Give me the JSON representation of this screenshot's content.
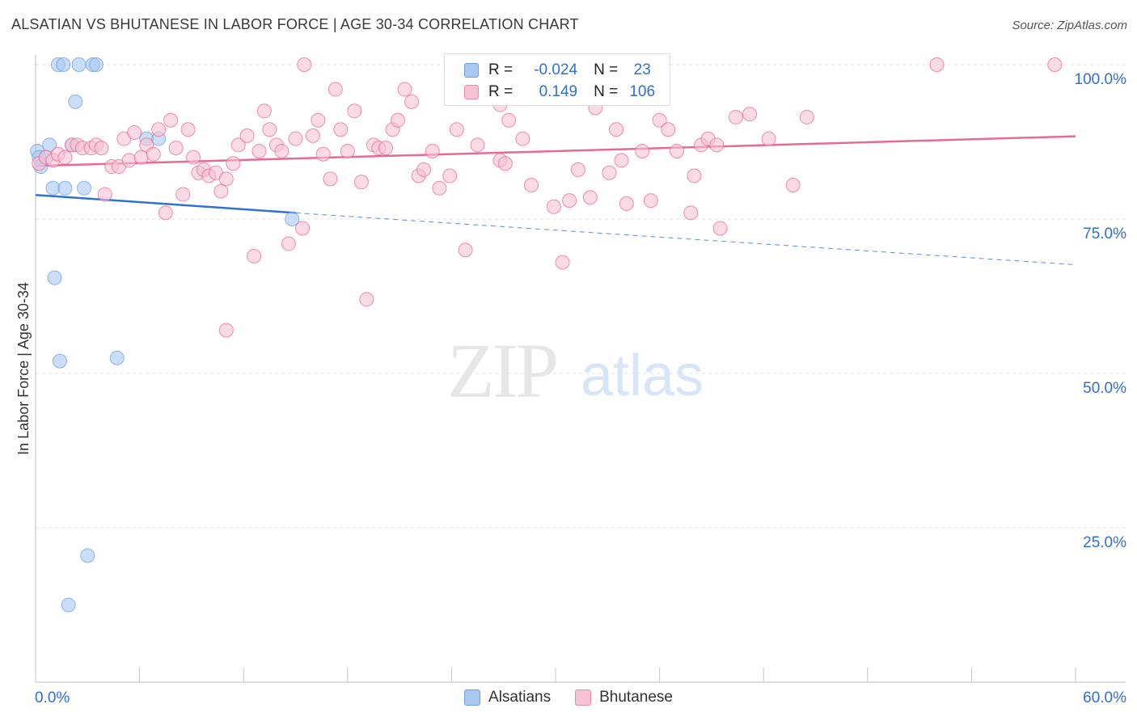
{
  "title": "ALSATIAN VS BHUTANESE IN LABOR FORCE | AGE 30-34 CORRELATION CHART",
  "source": "Source: ZipAtlas.com",
  "watermark": {
    "zip": "ZIP",
    "atlas": "atlas"
  },
  "stats": {
    "rows": [
      {
        "r_label": "R =",
        "r_value": "-0.024",
        "n_label": "N =",
        "n_value": "23",
        "color": "#a9c8f2",
        "border": "#6a9fe0"
      },
      {
        "r_label": "R =",
        "r_value": "0.149",
        "n_label": "N =",
        "n_value": "106",
        "color": "#f7c2d3",
        "border": "#e889a9"
      }
    ]
  },
  "legend": [
    {
      "label": "Alsatians",
      "color": "#a9c8f2",
      "border": "#6a9fe0"
    },
    {
      "label": "Bhutanese",
      "color": "#f7c2d3",
      "border": "#e889a9"
    }
  ],
  "chart_data": {
    "type": "scatter",
    "title": "ALSATIAN VS BHUTANESE IN LABOR FORCE | AGE 30-34 CORRELATION CHART",
    "ylabel": "In Labor Force | Age 30-34",
    "xlabel": "",
    "xlim": [
      0,
      60
    ],
    "ylim": [
      0,
      100
    ],
    "x_tick_labels": [
      "0.0%",
      "60.0%"
    ],
    "y_ticks": [
      25,
      50,
      75,
      100
    ],
    "y_tick_labels": [
      "25.0%",
      "50.0%",
      "75.0%",
      "100.0%"
    ],
    "grid": true,
    "legend_position": "bottom",
    "series": [
      {
        "name": "Alsatians",
        "color": "#6a9fe0",
        "fill": "#a9c8f2",
        "trend": {
          "x": [
            0,
            15
          ],
          "y": [
            78.9,
            76.0
          ],
          "dashed_to": [
            60,
            67.6
          ]
        },
        "points": [
          [
            0.1,
            86
          ],
          [
            0.2,
            85
          ],
          [
            0.3,
            83.5
          ],
          [
            0.8,
            87
          ],
          [
            0.6,
            85
          ],
          [
            1.0,
            80
          ],
          [
            1.3,
            100
          ],
          [
            1.6,
            100
          ],
          [
            2.5,
            100
          ],
          [
            3.3,
            100
          ],
          [
            3.5,
            100
          ],
          [
            2.3,
            94
          ],
          [
            2.1,
            87
          ],
          [
            1.7,
            80
          ],
          [
            2.8,
            80
          ],
          [
            6.4,
            88
          ],
          [
            7.1,
            88
          ],
          [
            14.8,
            75
          ],
          [
            1.1,
            65.5
          ],
          [
            1.4,
            52
          ],
          [
            4.7,
            52.5
          ],
          [
            3.0,
            20.5
          ],
          [
            1.9,
            12.5
          ]
        ]
      },
      {
        "name": "Bhutanese",
        "color": "#e96a98",
        "fill": "#f7c2d3",
        "trend": {
          "x": [
            0,
            60
          ],
          "y": [
            83.6,
            88.4
          ]
        },
        "points": [
          [
            0.2,
            84
          ],
          [
            0.6,
            85
          ],
          [
            1.0,
            84.5
          ],
          [
            1.3,
            85.5
          ],
          [
            1.7,
            85
          ],
          [
            2.1,
            87
          ],
          [
            2.4,
            87
          ],
          [
            2.7,
            86.5
          ],
          [
            3.2,
            86.5
          ],
          [
            3.5,
            87
          ],
          [
            3.8,
            86.5
          ],
          [
            4.0,
            79
          ],
          [
            4.4,
            83.5
          ],
          [
            4.8,
            83.5
          ],
          [
            5.1,
            88
          ],
          [
            5.4,
            84.5
          ],
          [
            5.7,
            89
          ],
          [
            6.1,
            85
          ],
          [
            6.4,
            87
          ],
          [
            6.8,
            85.5
          ],
          [
            7.1,
            89.5
          ],
          [
            7.5,
            76
          ],
          [
            7.8,
            91
          ],
          [
            8.1,
            86.5
          ],
          [
            8.5,
            79
          ],
          [
            8.8,
            89.5
          ],
          [
            9.1,
            85
          ],
          [
            9.4,
            82.5
          ],
          [
            9.7,
            83
          ],
          [
            10.0,
            82
          ],
          [
            10.4,
            82.5
          ],
          [
            10.7,
            79.5
          ],
          [
            11.0,
            81.5
          ],
          [
            11.4,
            84
          ],
          [
            11.7,
            87
          ],
          [
            11.0,
            57
          ],
          [
            12.2,
            88.5
          ],
          [
            12.6,
            69
          ],
          [
            12.9,
            86
          ],
          [
            13.2,
            92.5
          ],
          [
            13.5,
            89.5
          ],
          [
            13.9,
            87
          ],
          [
            14.2,
            86
          ],
          [
            14.6,
            71
          ],
          [
            15.0,
            88
          ],
          [
            15.4,
            73.5
          ],
          [
            15.5,
            100
          ],
          [
            16.0,
            88.5
          ],
          [
            16.3,
            91
          ],
          [
            16.6,
            85.5
          ],
          [
            17.0,
            81.5
          ],
          [
            17.3,
            96
          ],
          [
            17.6,
            89.5
          ],
          [
            18.0,
            86
          ],
          [
            18.4,
            92.5
          ],
          [
            18.8,
            81
          ],
          [
            19.1,
            62
          ],
          [
            19.5,
            87
          ],
          [
            19.8,
            86.5
          ],
          [
            20.2,
            86.5
          ],
          [
            20.6,
            89.5
          ],
          [
            20.9,
            91
          ],
          [
            21.3,
            96
          ],
          [
            21.7,
            94
          ],
          [
            22.1,
            82
          ],
          [
            22.4,
            83
          ],
          [
            22.9,
            86
          ],
          [
            23.3,
            80
          ],
          [
            23.9,
            82
          ],
          [
            24.3,
            89.5
          ],
          [
            24.8,
            70
          ],
          [
            25.5,
            87
          ],
          [
            26.8,
            93.5
          ],
          [
            26.8,
            84.5
          ],
          [
            27.1,
            84
          ],
          [
            27.3,
            91
          ],
          [
            28.1,
            88
          ],
          [
            28.6,
            80.5
          ],
          [
            29.9,
            77
          ],
          [
            30.4,
            68
          ],
          [
            30.8,
            78
          ],
          [
            31.3,
            83
          ],
          [
            32.0,
            78.5
          ],
          [
            32.3,
            93
          ],
          [
            33.1,
            82.5
          ],
          [
            33.5,
            89.5
          ],
          [
            33.8,
            84.5
          ],
          [
            34.1,
            77.5
          ],
          [
            35.0,
            86
          ],
          [
            35.5,
            78
          ],
          [
            36.0,
            91
          ],
          [
            36.5,
            89.5
          ],
          [
            37.0,
            86
          ],
          [
            37.8,
            76
          ],
          [
            38.0,
            82
          ],
          [
            38.4,
            87
          ],
          [
            38.8,
            88
          ],
          [
            39.3,
            87
          ],
          [
            39.5,
            73.5
          ],
          [
            40.4,
            91.5
          ],
          [
            41.2,
            92
          ],
          [
            42.3,
            88
          ],
          [
            43.7,
            80.5
          ],
          [
            44.5,
            91.5
          ],
          [
            52.0,
            100
          ],
          [
            58.8,
            100
          ]
        ]
      }
    ]
  }
}
